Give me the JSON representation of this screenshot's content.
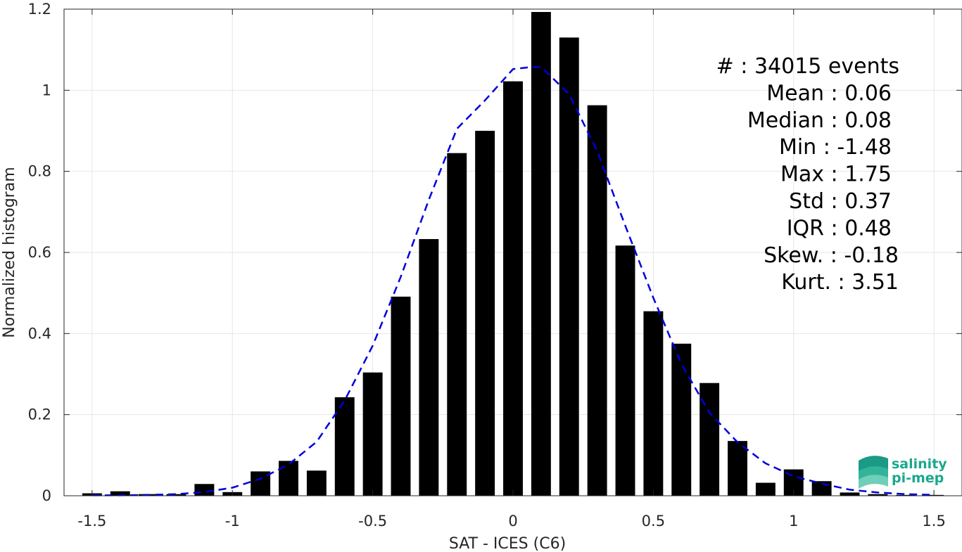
{
  "chart_data": {
    "type": "bar",
    "xlabel": "SAT - ICES (C6)",
    "ylabel": "Normalized histogram",
    "xlim": [
      -1.6,
      1.6
    ],
    "ylim": [
      0,
      1.2
    ],
    "grid": true,
    "x_ticks": [
      "-1.5",
      "-1",
      "-0.5",
      "0",
      "0.5",
      "1",
      "1.5"
    ],
    "x_tick_values": [
      -1.5,
      -1,
      -0.5,
      0,
      0.5,
      1,
      1.5
    ],
    "y_ticks": [
      "0",
      "0.2",
      "0.4",
      "0.6",
      "0.8",
      "1",
      "1.2"
    ],
    "y_tick_values": [
      0,
      0.2,
      0.4,
      0.6,
      0.8,
      1,
      1.2
    ],
    "bar_color": "#000000",
    "bin_width": 0.1,
    "bins": {
      "x": [
        -1.5,
        -1.4,
        -1.3,
        -1.2,
        -1.1,
        -1.0,
        -0.9,
        -0.8,
        -0.7,
        -0.6,
        -0.5,
        -0.4,
        -0.3,
        -0.2,
        -0.1,
        0.0,
        0.1,
        0.2,
        0.3,
        0.4,
        0.5,
        0.6,
        0.7,
        0.8,
        0.9,
        1.0,
        1.1,
        1.2,
        1.3,
        1.4,
        1.5
      ],
      "values": [
        0.006,
        0.011,
        0.004,
        0.004,
        0.029,
        0.009,
        0.06,
        0.086,
        0.062,
        0.243,
        0.304,
        0.491,
        0.633,
        0.845,
        0.9,
        1.022,
        1.193,
        1.13,
        0.963,
        0.617,
        0.455,
        0.375,
        0.278,
        0.135,
        0.032,
        0.065,
        0.036,
        0.008,
        0.004,
        0.002,
        0.002
      ]
    },
    "fit": {
      "style": "dashed",
      "color": "#0000dd",
      "x": [
        -1.5,
        -1.4,
        -1.3,
        -1.2,
        -1.1,
        -1.0,
        -0.9,
        -0.8,
        -0.7,
        -0.6,
        -0.5,
        -0.4,
        -0.3,
        -0.2,
        -0.1,
        0.0,
        0.05,
        0.1,
        0.2,
        0.3,
        0.4,
        0.5,
        0.6,
        0.7,
        0.8,
        0.9,
        1.0,
        1.1,
        1.2,
        1.3,
        1.4,
        1.5
      ],
      "y": [
        0.001,
        0.001,
        0.002,
        0.004,
        0.009,
        0.02,
        0.042,
        0.077,
        0.133,
        0.235,
        0.37,
        0.54,
        0.73,
        0.905,
        0.975,
        1.052,
        1.056,
        1.058,
        0.99,
        0.85,
        0.666,
        0.488,
        0.325,
        0.205,
        0.132,
        0.08,
        0.048,
        0.03,
        0.015,
        0.008,
        0.004,
        0.002
      ]
    },
    "stats": [
      {
        "label": "#",
        "value": ": 34015 events"
      },
      {
        "label": "Mean",
        "value": ": 0.06"
      },
      {
        "label": "Median",
        "value": ": 0.08"
      },
      {
        "label": "Min",
        "value": ": -1.48"
      },
      {
        "label": "Max",
        "value": ": 1.75"
      },
      {
        "label": "Std",
        "value": ": 0.37"
      },
      {
        "label": "IQR",
        "value": ": 0.48"
      },
      {
        "label": "Skew.",
        "value": ": -0.18"
      },
      {
        "label": "Kurt.",
        "value": ": 3.51"
      }
    ]
  },
  "logo": {
    "line1": "salinity",
    "line2": "pi-mep",
    "color": "#1aa88c"
  }
}
